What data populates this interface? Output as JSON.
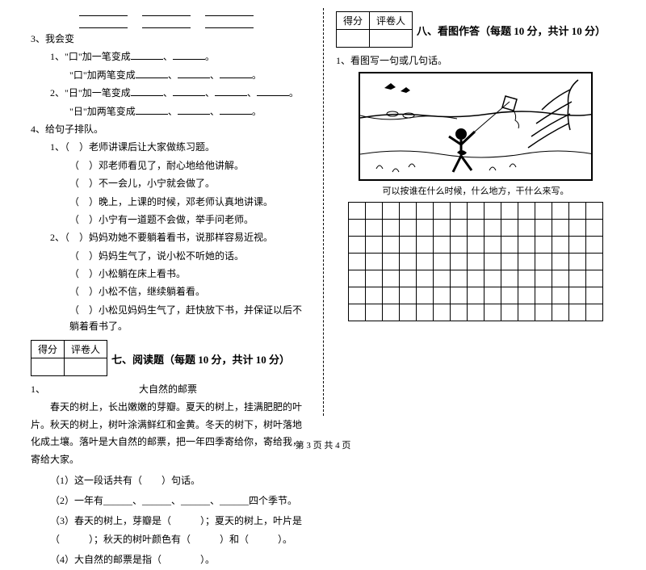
{
  "left": {
    "num3": "3、我会变",
    "q3_1": "1、\"口\"加一笔变成",
    "q3_1b": "\"口\"加两笔变成",
    "q3_2": "2、\"日\"加一笔变成",
    "q3_2b": "\"日\"加两笔变成",
    "num4": "4、给句子排队。",
    "g1": "1、（　）老师讲课后让大家做练习题。",
    "g1a": "（　）邓老师看见了，耐心地给他讲解。",
    "g1b": "（　）不一会儿，小宁就会做了。",
    "g1c": "（　）晚上，上课的时候，邓老师认真地讲课。",
    "g1d": "（　）小宁有一道题不会做，举手问老师。",
    "g2": "2、（　）妈妈劝她不要躺着看书，说那样容易近视。",
    "g2a": "（　）妈妈生气了，说小松不听她的话。",
    "g2b": "（　）小松躺在床上看书。",
    "g2c": "（　）小松不信，继续躺着看。",
    "g2d": "（　）小松见妈妈生气了，赶快放下书，并保证以后不躺着看书了。",
    "score_label1": "得分",
    "score_label2": "评卷人",
    "section7": "七、阅读题（每题 10 分，共计 10 分）",
    "num1": "1、",
    "ptitle": "大自然的邮票",
    "passage": "春天的树上，长出嫩嫩的芽瓣。夏天的树上，挂满肥肥的叶片。秋天的树上，树叶涂满鲜红和金黄。冬天的树下，树叶落地化成土壤。落叶是大自然的邮票，把一年四季寄给你，寄给我，寄给大家。",
    "pq1": "（1）这一段话共有（　　）句话。",
    "pq2": "（2）一年有______、______、______、______四个季节。",
    "pq3": "（3）春天的树上，芽瓣是（　　　）；夏天的树上，叶片是（　　　）；秋天的树叶颜色有（　　　）和（　　　）。",
    "pq4": "（4）大自然的邮票是指（　　　　）。"
  },
  "right": {
    "score_label1": "得分",
    "score_label2": "评卷人",
    "section8": "八、看图作答（每题 10 分，共计 10 分）",
    "num1": "1、看图写一句或几句话。",
    "hint": "可以按谁在什么时候，什么地方，干什么来写。"
  },
  "footer": "第 3 页  共 4 页",
  "grid": {
    "rows": 7,
    "cols": 15
  }
}
